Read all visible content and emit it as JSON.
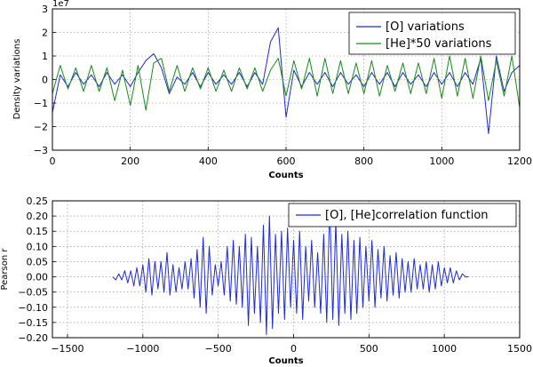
{
  "chart_data": [
    {
      "type": "line",
      "xlabel": "Counts",
      "ylabel": "Density variations",
      "y_multiplier_label": "1e7",
      "xlim": [
        0,
        1200
      ],
      "ylim": [
        -3,
        3
      ],
      "x_ticks": [
        "0",
        "200",
        "400",
        "600",
        "800",
        "1000",
        "1200"
      ],
      "y_ticks": [
        "−3",
        "−2",
        "−1",
        "0",
        "1",
        "2",
        "3"
      ],
      "grid": true,
      "legend_position": "top-right",
      "x_step": 20,
      "series": [
        {
          "name": "[O] variations",
          "color": "#1f2bd6",
          "values": [
            -1.4,
            0.2,
            -0.3,
            0.3,
            -0.2,
            0.2,
            -0.3,
            0.3,
            -0.2,
            0.2,
            -0.3,
            0.3,
            0.8,
            1.1,
            0.5,
            -0.6,
            0.1,
            -0.2,
            0.3,
            -0.3,
            0.3,
            -0.2,
            0.2,
            -0.2,
            0.3,
            -0.3,
            0.3,
            -0.2,
            1.6,
            2.2,
            -1.6,
            0.4,
            -0.3,
            0.3,
            -0.2,
            0.3,
            -0.3,
            0.3,
            -0.2,
            0.2,
            -0.3,
            0.3,
            -0.2,
            0.3,
            -0.3,
            0.3,
            -0.2,
            0.2,
            -0.3,
            0.3,
            -0.2,
            0.3,
            -0.3,
            0.3,
            -0.2,
            0.9,
            -2.3,
            1.0,
            -0.5,
            0.3,
            0.6
          ]
        },
        {
          "name": "[He]*50 variations",
          "color": "#1a8a1a",
          "values": [
            -0.6,
            0.6,
            -0.4,
            0.5,
            -0.5,
            0.6,
            -0.5,
            0.5,
            -0.9,
            0.4,
            -1.1,
            0.6,
            -1.3,
            0.7,
            0.9,
            -0.5,
            0.6,
            -0.5,
            0.5,
            -0.4,
            0.5,
            -0.5,
            0.4,
            -0.5,
            0.5,
            -0.4,
            0.5,
            -0.5,
            0.4,
            0.9,
            -0.7,
            0.8,
            -0.4,
            0.9,
            -0.7,
            0.9,
            -0.6,
            0.8,
            -0.6,
            0.7,
            -0.6,
            0.8,
            -0.7,
            0.6,
            -0.5,
            0.7,
            -0.6,
            0.7,
            -0.6,
            0.9,
            -0.8,
            1.0,
            -0.7,
            0.9,
            -0.8,
            1.0,
            -0.9,
            0.8,
            -0.7,
            1.0,
            -1.2
          ]
        }
      ]
    },
    {
      "type": "line",
      "xlabel": "Counts",
      "ylabel": "Pearson r",
      "xlim": [
        -1600,
        1500
      ],
      "ylim": [
        -0.2,
        0.25
      ],
      "x_ticks": [
        "−1500",
        "−1000",
        "−500",
        "0",
        "500",
        "1000",
        "1500"
      ],
      "y_ticks": [
        "−0.20",
        "−0.15",
        "−0.10",
        "−0.05",
        "0.00",
        "0.05",
        "0.10",
        "0.15",
        "0.20",
        "0.25"
      ],
      "grid": true,
      "legend_position": "top-right",
      "x_start": -1200,
      "x_step": 20,
      "series": [
        {
          "name": "[O], [He]correlation function",
          "color": "#1f2bd6",
          "values": [
            0.0,
            -0.01,
            0.01,
            -0.01,
            0.02,
            -0.02,
            0.02,
            -0.03,
            0.03,
            -0.03,
            0.04,
            -0.05,
            0.06,
            -0.06,
            0.05,
            -0.04,
            0.05,
            -0.05,
            0.08,
            -0.06,
            0.04,
            -0.05,
            0.03,
            -0.04,
            0.05,
            -0.04,
            0.06,
            -0.07,
            0.09,
            -0.1,
            0.13,
            -0.12,
            0.1,
            -0.06,
            0.04,
            -0.03,
            0.05,
            -0.06,
            0.1,
            -0.08,
            0.12,
            -0.09,
            0.1,
            -0.1,
            0.14,
            -0.16,
            0.13,
            -0.12,
            0.1,
            -0.15,
            0.17,
            -0.19,
            0.2,
            -0.17,
            0.14,
            -0.12,
            0.15,
            -0.14,
            0.16,
            -0.1,
            0.12,
            -0.12,
            0.15,
            -0.14,
            0.1,
            -0.08,
            0.12,
            -0.1,
            0.08,
            -0.12,
            0.14,
            -0.15,
            0.24,
            -0.14,
            0.18,
            -0.16,
            0.14,
            -0.12,
            0.15,
            -0.14,
            0.12,
            -0.12,
            0.13,
            -0.1,
            0.1,
            -0.08,
            0.12,
            -0.1,
            0.09,
            -0.07,
            0.1,
            -0.08,
            0.07,
            -0.06,
            0.08,
            -0.07,
            0.06,
            -0.05,
            0.05,
            -0.05,
            0.06,
            -0.04,
            0.04,
            -0.04,
            0.05,
            -0.05,
            0.04,
            -0.04,
            0.05,
            -0.03,
            0.03,
            -0.02,
            0.03,
            -0.02,
            0.02,
            -0.01,
            0.01,
            0.0,
            0.0
          ]
        }
      ]
    }
  ]
}
